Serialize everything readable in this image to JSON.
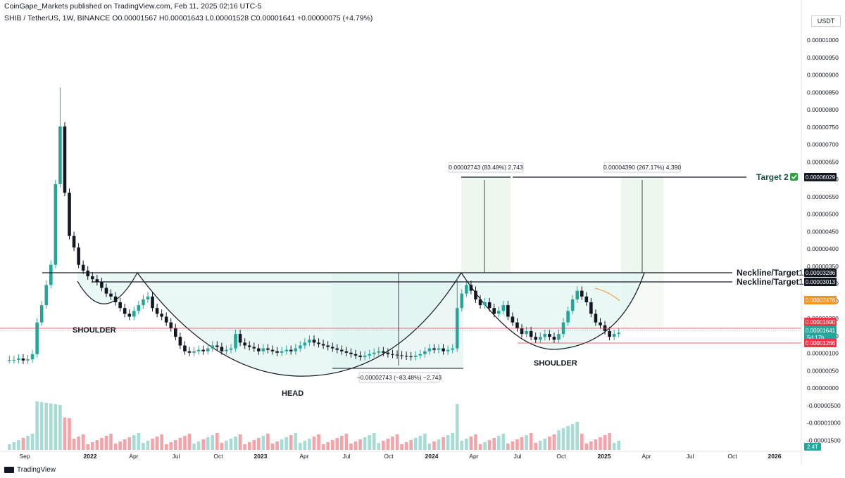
{
  "header": {
    "publisher": "CoinGape_Markets published on TradingView.com, Feb 11, 2025 02:16 UTC-5",
    "symbol_line": "SHIB / TetherUS, 1W, BINANCE  O0.00001567  H0.00001643  L0.00001528  C0.00001641  +0.00000075 (+4.79%)"
  },
  "footer": {
    "brand": "TradingView",
    "brand_icon": "tradingview-logo-icon"
  },
  "chart_data": {
    "type": "candlestick",
    "title": "SHIB / TetherUS, 1W, BINANCE",
    "currency": "USDT",
    "ylim": [
      -1.5e-05,
      1e-05
    ],
    "y_ticks": [
      "0.00001000",
      "0.00000950",
      "0.00000900",
      "0.00000850",
      "0.00000800",
      "0.00000750",
      "0.00000700",
      "0.00000650",
      "0.00000600",
      "0.00000550",
      "0.00000500",
      "0.00000450",
      "0.00000400",
      "0.00000350",
      "0.00000300",
      "0.00000250",
      "0.00000200",
      "0.00000150",
      "0.00000100",
      "0.00000050",
      "0.00000000",
      "-0.00000500",
      "-0.00001000",
      "-0.00001500"
    ],
    "x_ticks": [
      "Sep",
      "2022",
      "Apr",
      "Jul",
      "Oct",
      "2023",
      "Apr",
      "Jul",
      "Oct",
      "2024",
      "Apr",
      "Jul",
      "Oct",
      "2025",
      "Apr",
      "Jul",
      "Oct",
      "2026"
    ],
    "price_tags": [
      {
        "value": "0.00006029",
        "color": "#131722"
      },
      {
        "value": "0.00003286",
        "color": "#131722"
      },
      {
        "value": "0.00003013",
        "color": "#131722"
      },
      {
        "value": "0.00002476",
        "color": "#f7941d"
      },
      {
        "value": "0.00001690",
        "color": "#f23645"
      },
      {
        "value": "0.00001641",
        "color": "#26a69a",
        "sub": "5d 17h"
      },
      {
        "value": "0.00001266",
        "color": "#f23645"
      }
    ],
    "volume_tag": "2.4T",
    "annotations": {
      "target2": "Target 2",
      "target2_icon": "check-mark-icon",
      "neckline1": "Neckline/Target1",
      "neckline2": "Neckline/Target1",
      "left_shoulder": "SHOULDER",
      "head": "HEAD",
      "right_shoulder": "SHOULDER",
      "measure_up_left": "0.00002743 (83.48%) 2,743",
      "measure_up_right": "0.00004390 (267.17%) 4,390",
      "measure_down": "−0.00002743 (−83.48%) −2,743"
    },
    "candles_close_approx": [
      0.7,
      0.7,
      0.75,
      0.68,
      0.72,
      0.9,
      2.0,
      2.6,
      3.3,
      4.0,
      6.8,
      8.8,
      6.5,
      5.0,
      4.6,
      4.0,
      3.8,
      3.6,
      3.5,
      3.4,
      3.2,
      3.0,
      2.9,
      2.7,
      2.5,
      2.3,
      2.2,
      2.4,
      2.6,
      2.8,
      2.9,
      2.5,
      2.3,
      2.2,
      2.0,
      1.8,
      1.5,
      1.2,
      1.0,
      0.95,
      1.0,
      1.05,
      1.0,
      1.1,
      1.2,
      1.15,
      1.0,
      1.05,
      1.1,
      1.6,
      1.3,
      1.2,
      1.15,
      1.1,
      1.0,
      1.1,
      1.05,
      1.0,
      0.95,
      1.0,
      1.05,
      1.0,
      1.1,
      1.2,
      1.3,
      1.4,
      1.3,
      1.25,
      1.2,
      1.15,
      1.1,
      1.05,
      1.0,
      0.95,
      0.9,
      0.85,
      0.8,
      0.85,
      0.9,
      0.95,
      1.0,
      0.95,
      0.9,
      0.88,
      0.86,
      0.84,
      0.82,
      0.8,
      0.85,
      0.9,
      1.0,
      1.1,
      1.05,
      1.1,
      1.0,
      1.05,
      1.1,
      2.5,
      3.0,
      3.3,
      3.1,
      2.8,
      2.6,
      2.7,
      2.5,
      2.3,
      2.4,
      2.6,
      2.2,
      2.0,
      1.8,
      1.6,
      1.7,
      1.5,
      1.4,
      1.5,
      1.6,
      1.5,
      1.4,
      1.6,
      2.0,
      2.4,
      2.8,
      3.1,
      2.9,
      2.7,
      2.3,
      2.0,
      1.9,
      1.7,
      1.5,
      1.6,
      1.64
    ]
  }
}
